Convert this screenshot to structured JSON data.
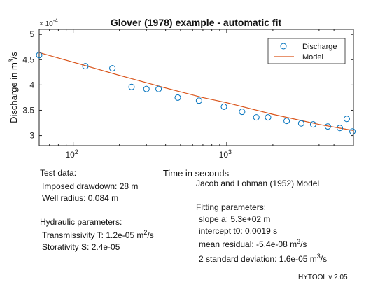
{
  "chart_data": {
    "type": "scatter",
    "title": "Glover (1978) example - automatic fit",
    "xlabel": "Time in seconds",
    "ylabel_main": "Discharge in m",
    "ylabel_sup": "3",
    "ylabel_tail": "/s",
    "x_scale": "log",
    "xlim": [
      60,
      6700
    ],
    "ylim": [
      2.8,
      5.1
    ],
    "y_multiplier_base": "× 10",
    "y_multiplier_exp": "-4",
    "xticks": [
      {
        "value": 100,
        "base": "10",
        "exp": "2"
      },
      {
        "value": 1000,
        "base": "10",
        "exp": "3"
      }
    ],
    "yticks": [
      {
        "value": 3,
        "label": "3"
      },
      {
        "value": 3.5,
        "label": "3.5"
      },
      {
        "value": 4,
        "label": "4"
      },
      {
        "value": 4.5,
        "label": "4.5"
      },
      {
        "value": 5,
        "label": "5"
      }
    ],
    "grid": false,
    "legend_position": "top-right",
    "series": [
      {
        "name": "Discharge",
        "kind": "markers",
        "color": "#0072BD",
        "x": [
          60,
          120,
          180,
          240,
          300,
          360,
          480,
          660,
          960,
          1260,
          1560,
          1860,
          2460,
          3060,
          3660,
          4560,
          5460,
          6060,
          6600
        ],
        "y": [
          4.59,
          4.37,
          4.33,
          3.96,
          3.92,
          3.92,
          3.75,
          3.69,
          3.57,
          3.47,
          3.36,
          3.36,
          3.29,
          3.24,
          3.22,
          3.18,
          3.15,
          3.33,
          3.08
        ]
      },
      {
        "name": "Model",
        "kind": "line",
        "color": "#D95319",
        "x": [
          60,
          100,
          200,
          400,
          700,
          1000,
          2000,
          4000,
          6700
        ],
        "y": [
          4.64,
          4.45,
          4.19,
          3.94,
          3.75,
          3.65,
          3.42,
          3.22,
          3.1
        ]
      }
    ]
  },
  "annotations": {
    "test_data_header": "Test data:",
    "drawdown": "Imposed drawdown: 28 m",
    "well_radius": "Well radius: 0.084 m",
    "hydraulic_header": "Hydraulic parameters:",
    "transmissivity_pre": "Transmissivity T: 1.2e-05 m",
    "transmissivity_sup": "2",
    "transmissivity_post": "/s",
    "storativity": "Storativity S: 2.4e-05",
    "model_name": "Jacob and Lohman (1952) Model",
    "fitting_header": "Fitting parameters:",
    "slope": "slope a: 5.3e+02 m",
    "intercept": "intercept t0: 0.0019 s",
    "residual_pre": "mean residual: -5.4e-08 m",
    "residual_sup": "3",
    "residual_post": "/s",
    "std_pre": "2 standard deviation: 1.6e-05 m",
    "std_sup": "3",
    "std_post": "/s",
    "version": "HYTOOL v 2.05"
  }
}
